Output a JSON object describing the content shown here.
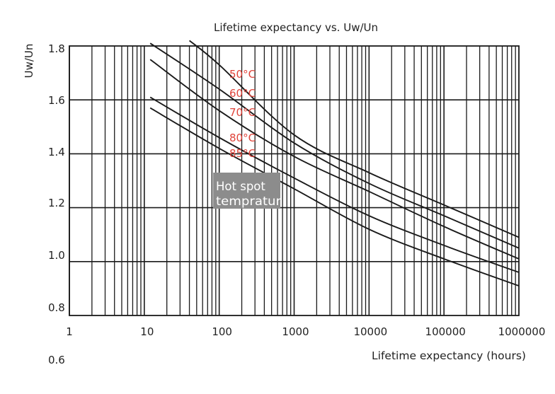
{
  "chart_data": {
    "type": "line",
    "title": "Lifetime expectancy vs. Uw/Un",
    "xlabel": "Lifetime expectancy (hours)",
    "ylabel": "Uw/Un",
    "x_scale": "log",
    "xlim": [
      1,
      1000000
    ],
    "ylim": [
      0.8,
      1.8
    ],
    "x_tick_labels": [
      "1",
      "10",
      "100",
      "1000",
      "10000",
      "100000",
      "1000000"
    ],
    "y_tick_labels": [
      "1.8",
      "1.6",
      "1.4",
      "1.2",
      "1.0",
      "0.8"
    ],
    "extra_y_label": "0.6",
    "grid": true,
    "series": [
      {
        "name": "50°C",
        "points": [
          [
            40,
            1.82
          ],
          [
            100,
            1.73
          ],
          [
            1000,
            1.47
          ],
          [
            10000,
            1.33
          ],
          [
            100000,
            1.21
          ],
          [
            1000000,
            1.09
          ]
        ]
      },
      {
        "name": "60°C",
        "points": [
          [
            12,
            1.81
          ],
          [
            100,
            1.64
          ],
          [
            1000,
            1.44
          ],
          [
            10000,
            1.29
          ],
          [
            100000,
            1.17
          ],
          [
            1000000,
            1.05
          ]
        ]
      },
      {
        "name": "70°C",
        "points": [
          [
            12,
            1.75
          ],
          [
            100,
            1.56
          ],
          [
            1000,
            1.39
          ],
          [
            10000,
            1.26
          ],
          [
            100000,
            1.13
          ],
          [
            1000000,
            1.01
          ]
        ]
      },
      {
        "name": "80°C",
        "points": [
          [
            12,
            1.61
          ],
          [
            100,
            1.46
          ],
          [
            1000,
            1.31
          ],
          [
            10000,
            1.17
          ],
          [
            100000,
            1.06
          ],
          [
            1000000,
            0.96
          ]
        ]
      },
      {
        "name": "85°C",
        "points": [
          [
            12,
            1.57
          ],
          [
            100,
            1.42
          ],
          [
            1000,
            1.27
          ],
          [
            10000,
            1.12
          ],
          [
            100000,
            1.01
          ],
          [
            1000000,
            0.91
          ]
        ]
      }
    ],
    "annotation": {
      "line1": "Hot spot",
      "line2": "tempratur",
      "text_color": "#ffffff",
      "box_color": "#8c8c8c"
    },
    "colors": {
      "curve": "#1a1a1a",
      "grid": "#1a1a1a",
      "series_label": "#e0443a",
      "text": "#222222"
    }
  }
}
